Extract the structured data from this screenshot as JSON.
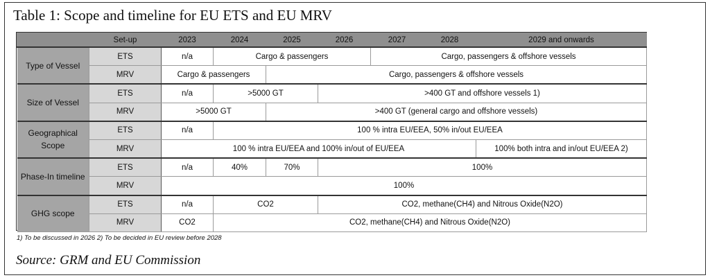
{
  "title": "Table 1: Scope and timeline for EU ETS and EU MRV",
  "header": {
    "setup": "Set-up",
    "years": [
      "2023",
      "2024",
      "2025",
      "2026",
      "2027",
      "2028",
      "2029 and onwards"
    ]
  },
  "rows": {
    "vessel_type": {
      "label": "Type of Vessel",
      "ets": {
        "setup": "ETS",
        "c1": "n/a",
        "c2": "Cargo & passengers",
        "c3": "Cargo, passengers & offshore vessels"
      },
      "mrv": {
        "setup": "MRV",
        "c1": "Cargo & passengers",
        "c2": "Cargo, passengers & offshore vessels"
      }
    },
    "vessel_size": {
      "label": "Size of Vessel",
      "ets": {
        "setup": "ETS",
        "c1": "n/a",
        "c2": ">5000 GT",
        "c3": ">400 GT and offshore vessels 1)"
      },
      "mrv": {
        "setup": "MRV",
        "c1": ">5000 GT",
        "c2": ">400 GT (general cargo and offshore vessels)"
      }
    },
    "geo_scope": {
      "label": "Geographical Scope",
      "ets": {
        "setup": "ETS",
        "c1": "n/a",
        "c2": "100 % intra EU/EEA, 50% in/out EU/EEA"
      },
      "mrv": {
        "setup": "MRV",
        "c1": "100 % intra EU/EEA and 100% in/out of EU/EEA",
        "c2": "100% both intra and in/out EU/EEA 2)"
      }
    },
    "phase_in": {
      "label": "Phase-In timeline",
      "ets": {
        "setup": "ETS",
        "c1": "n/a",
        "c2": "40%",
        "c3": "70%",
        "c4": "100%"
      },
      "mrv": {
        "setup": "MRV",
        "c1": "100%"
      }
    },
    "ghg_scope": {
      "label": "GHG scope",
      "ets": {
        "setup": "ETS",
        "c1": "n/a",
        "c2": "CO2",
        "c3": "CO2, methane(CH4) and Nitrous Oxide(N2O)"
      },
      "mrv": {
        "setup": "MRV",
        "c1": "CO2",
        "c2": "CO2, methane(CH4) and Nitrous Oxide(N2O)"
      }
    }
  },
  "footnote": "1) To be discussed in 2026   2) To be decided in EU review before 2028",
  "source": "Source: GRM and EU Commission"
}
